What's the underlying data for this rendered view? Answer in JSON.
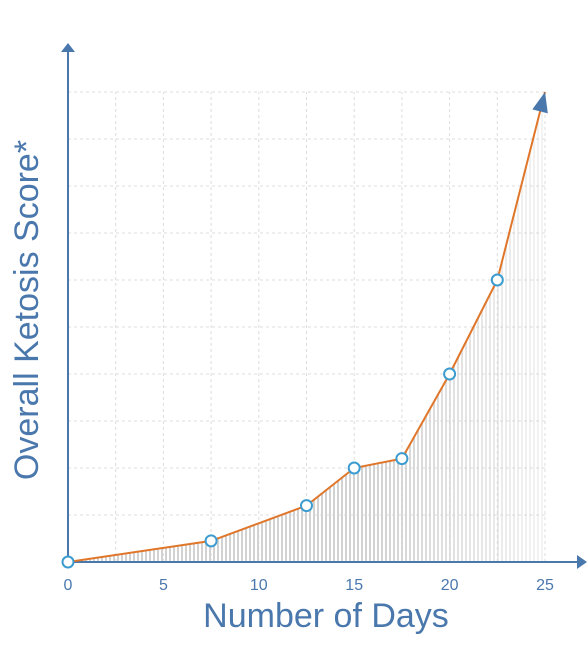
{
  "chart_data": {
    "type": "line",
    "xlabel": "Number of Days",
    "ylabel": "Overall Ketosis Score*",
    "xlim": [
      0,
      25
    ],
    "ylim": [
      0,
      100
    ],
    "xticks": [
      "0",
      "5",
      "10",
      "15",
      "20",
      "25"
    ],
    "grid": true,
    "series": [
      {
        "x": [
          0,
          7.5,
          12.5,
          15,
          17.5,
          20,
          22.5,
          25
        ],
        "y": [
          0,
          4.5,
          12,
          20,
          22,
          40,
          60,
          100
        ],
        "markers": [
          true,
          true,
          true,
          true,
          true,
          true,
          true,
          false
        ],
        "end_arrow": true
      }
    ],
    "area_fill": "vertical-stripes",
    "colors": {
      "axis": "#4a78ad",
      "line": "#e0762a",
      "marker_fill": "#ffffff",
      "marker_stroke": "#3d9ccf",
      "grid": "#dcdcdc",
      "fill_stripe": "#d0d0d0"
    }
  }
}
